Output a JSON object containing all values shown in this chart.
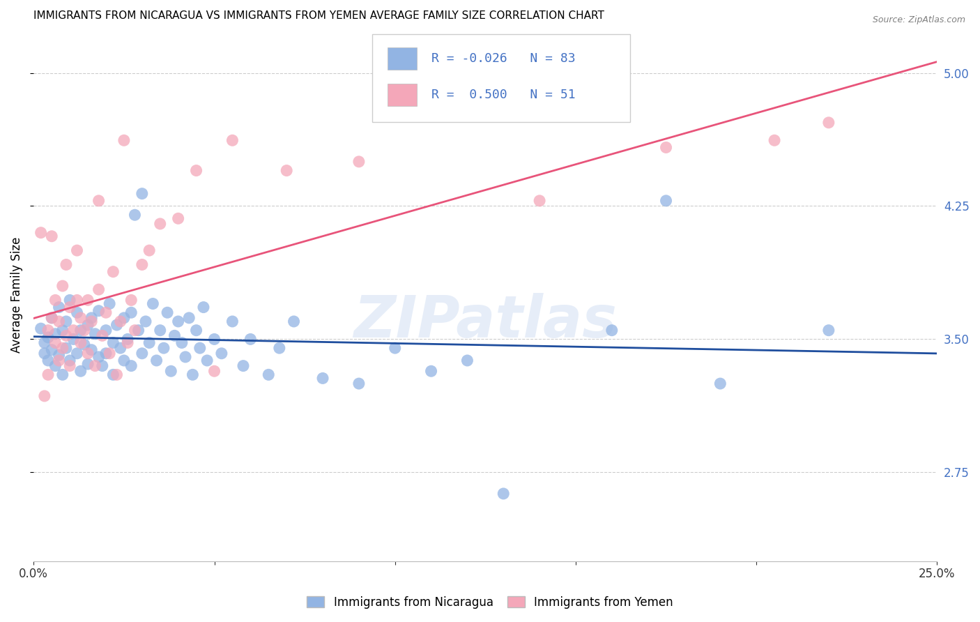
{
  "title": "IMMIGRANTS FROM NICARAGUA VS IMMIGRANTS FROM YEMEN AVERAGE FAMILY SIZE CORRELATION CHART",
  "source": "Source: ZipAtlas.com",
  "ylabel": "Average Family Size",
  "xlim": [
    0.0,
    0.25
  ],
  "ylim": [
    2.25,
    5.25
  ],
  "yticks": [
    2.75,
    3.5,
    4.25,
    5.0
  ],
  "xticks": [
    0.0,
    0.05,
    0.1,
    0.15,
    0.2,
    0.25
  ],
  "xticklabels": [
    "0.0%",
    "",
    "",
    "",
    "",
    "25.0%"
  ],
  "yticklabel_color": "#4472c4",
  "legend_text_color": "#4472c4",
  "background_color": "#ffffff",
  "watermark": "ZIPatlas",
  "legend_R_nicaragua": "-0.026",
  "legend_N_nicaragua": "83",
  "legend_R_yemen": "0.500",
  "legend_N_yemen": "51",
  "nicaragua_color": "#92b4e3",
  "yemen_color": "#f4a7b9",
  "trendline_nicaragua_color": "#1f4e9e",
  "trendline_yemen_color": "#e8547a",
  "nicaragua_scatter": [
    [
      0.002,
      3.56
    ],
    [
      0.003,
      3.48
    ],
    [
      0.003,
      3.42
    ],
    [
      0.004,
      3.51
    ],
    [
      0.004,
      3.38
    ],
    [
      0.005,
      3.62
    ],
    [
      0.005,
      3.44
    ],
    [
      0.006,
      3.53
    ],
    [
      0.006,
      3.35
    ],
    [
      0.007,
      3.68
    ],
    [
      0.007,
      3.41
    ],
    [
      0.008,
      3.55
    ],
    [
      0.008,
      3.3
    ],
    [
      0.009,
      3.6
    ],
    [
      0.009,
      3.45
    ],
    [
      0.01,
      3.72
    ],
    [
      0.01,
      3.38
    ],
    [
      0.011,
      3.5
    ],
    [
      0.012,
      3.65
    ],
    [
      0.012,
      3.42
    ],
    [
      0.013,
      3.55
    ],
    [
      0.013,
      3.32
    ],
    [
      0.014,
      3.47
    ],
    [
      0.015,
      3.58
    ],
    [
      0.015,
      3.36
    ],
    [
      0.016,
      3.62
    ],
    [
      0.016,
      3.44
    ],
    [
      0.017,
      3.53
    ],
    [
      0.018,
      3.4
    ],
    [
      0.018,
      3.66
    ],
    [
      0.019,
      3.35
    ],
    [
      0.02,
      3.55
    ],
    [
      0.02,
      3.42
    ],
    [
      0.021,
      3.7
    ],
    [
      0.022,
      3.48
    ],
    [
      0.022,
      3.3
    ],
    [
      0.023,
      3.58
    ],
    [
      0.024,
      3.45
    ],
    [
      0.025,
      3.62
    ],
    [
      0.025,
      3.38
    ],
    [
      0.026,
      3.5
    ],
    [
      0.027,
      3.65
    ],
    [
      0.027,
      3.35
    ],
    [
      0.028,
      4.2
    ],
    [
      0.029,
      3.55
    ],
    [
      0.03,
      3.42
    ],
    [
      0.03,
      4.32
    ],
    [
      0.031,
      3.6
    ],
    [
      0.032,
      3.48
    ],
    [
      0.033,
      3.7
    ],
    [
      0.034,
      3.38
    ],
    [
      0.035,
      3.55
    ],
    [
      0.036,
      3.45
    ],
    [
      0.037,
      3.65
    ],
    [
      0.038,
      3.32
    ],
    [
      0.039,
      3.52
    ],
    [
      0.04,
      3.6
    ],
    [
      0.041,
      3.48
    ],
    [
      0.042,
      3.4
    ],
    [
      0.043,
      3.62
    ],
    [
      0.044,
      3.3
    ],
    [
      0.045,
      3.55
    ],
    [
      0.046,
      3.45
    ],
    [
      0.047,
      3.68
    ],
    [
      0.048,
      3.38
    ],
    [
      0.05,
      3.5
    ],
    [
      0.052,
      3.42
    ],
    [
      0.055,
      3.6
    ],
    [
      0.058,
      3.35
    ],
    [
      0.06,
      3.5
    ],
    [
      0.065,
      3.3
    ],
    [
      0.068,
      3.45
    ],
    [
      0.072,
      3.6
    ],
    [
      0.08,
      3.28
    ],
    [
      0.09,
      3.25
    ],
    [
      0.1,
      3.45
    ],
    [
      0.11,
      3.32
    ],
    [
      0.12,
      3.38
    ],
    [
      0.13,
      2.63
    ],
    [
      0.16,
      3.55
    ],
    [
      0.175,
      4.28
    ],
    [
      0.19,
      3.25
    ],
    [
      0.22,
      3.55
    ]
  ],
  "yemen_scatter": [
    [
      0.002,
      4.1
    ],
    [
      0.003,
      3.18
    ],
    [
      0.004,
      3.55
    ],
    [
      0.004,
      3.3
    ],
    [
      0.005,
      3.62
    ],
    [
      0.005,
      4.08
    ],
    [
      0.006,
      3.48
    ],
    [
      0.006,
      3.72
    ],
    [
      0.007,
      3.38
    ],
    [
      0.007,
      3.6
    ],
    [
      0.008,
      3.45
    ],
    [
      0.008,
      3.8
    ],
    [
      0.009,
      3.52
    ],
    [
      0.009,
      3.92
    ],
    [
      0.01,
      3.35
    ],
    [
      0.01,
      3.68
    ],
    [
      0.011,
      3.55
    ],
    [
      0.012,
      3.72
    ],
    [
      0.012,
      4.0
    ],
    [
      0.013,
      3.48
    ],
    [
      0.013,
      3.62
    ],
    [
      0.014,
      3.55
    ],
    [
      0.015,
      3.42
    ],
    [
      0.015,
      3.72
    ],
    [
      0.016,
      3.6
    ],
    [
      0.017,
      3.35
    ],
    [
      0.018,
      3.78
    ],
    [
      0.018,
      4.28
    ],
    [
      0.019,
      3.52
    ],
    [
      0.02,
      3.65
    ],
    [
      0.021,
      3.42
    ],
    [
      0.022,
      3.88
    ],
    [
      0.023,
      3.3
    ],
    [
      0.024,
      3.6
    ],
    [
      0.025,
      4.62
    ],
    [
      0.026,
      3.48
    ],
    [
      0.027,
      3.72
    ],
    [
      0.028,
      3.55
    ],
    [
      0.03,
      3.92
    ],
    [
      0.032,
      4.0
    ],
    [
      0.035,
      4.15
    ],
    [
      0.04,
      4.18
    ],
    [
      0.045,
      4.45
    ],
    [
      0.05,
      3.32
    ],
    [
      0.055,
      4.62
    ],
    [
      0.07,
      4.45
    ],
    [
      0.09,
      4.5
    ],
    [
      0.14,
      4.28
    ],
    [
      0.175,
      4.58
    ],
    [
      0.205,
      4.62
    ],
    [
      0.22,
      4.72
    ]
  ]
}
